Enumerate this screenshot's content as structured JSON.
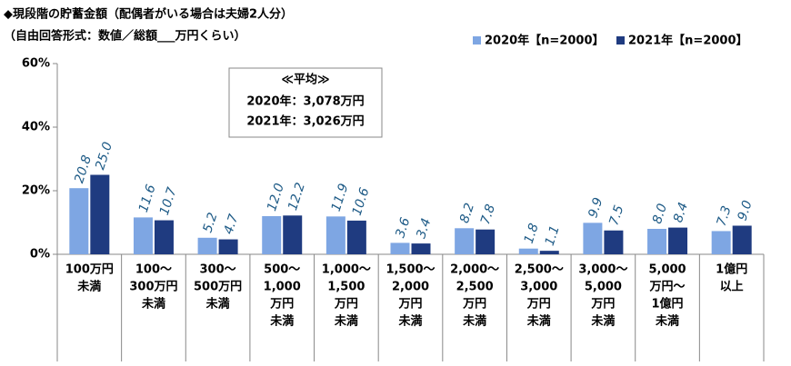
{
  "chart_data": {
    "type": "bar",
    "title": "◆現段階の貯蓄金額（配偶者がいる場合は夫婦2人分）",
    "subtitle": "（自由回答形式：数値／総額___万円くらい）",
    "categories": [
      [
        "100万円",
        "未満"
      ],
      [
        "100～",
        "300万円",
        "未満"
      ],
      [
        "300～",
        "500万円",
        "未満"
      ],
      [
        "500～",
        "1,000",
        "万円",
        "未満"
      ],
      [
        "1,000～",
        "1,500",
        "万円",
        "未満"
      ],
      [
        "1,500～",
        "2,000",
        "万円",
        "未満"
      ],
      [
        "2,000～",
        "2,500",
        "万円",
        "未満"
      ],
      [
        "2,500～",
        "3,000",
        "万円",
        "未満"
      ],
      [
        "3,000～",
        "5,000",
        "万円",
        "未満"
      ],
      [
        "5,000",
        "万円～",
        "1億円",
        "未満"
      ],
      [
        "1億円",
        "以上"
      ]
    ],
    "series": [
      {
        "name": "2020年【n=2000】",
        "color": "#7ea6e3",
        "values": [
          20.8,
          11.6,
          5.2,
          12.0,
          11.9,
          3.6,
          8.2,
          1.8,
          9.9,
          8.0,
          7.3
        ],
        "value_labels": [
          "20.8",
          "11.6",
          "5.2",
          "12.0",
          "11.9",
          "3.6",
          "8.2",
          "1.8",
          "9.9",
          "8.0",
          "7.3"
        ]
      },
      {
        "name": "2021年【n=2000】",
        "color": "#1f3b80",
        "values": [
          25.0,
          10.7,
          4.7,
          12.2,
          10.6,
          3.4,
          7.8,
          1.1,
          7.5,
          8.4,
          9.0
        ],
        "value_labels": [
          "25.0",
          "10.7",
          "4.7",
          "12.2",
          "10.6",
          "3.4",
          "7.8",
          "1.1",
          "7.5",
          "8.4",
          "9.0"
        ]
      }
    ],
    "ylim": [
      0,
      60
    ],
    "yticks": [
      {
        "value": 0,
        "label": "0%"
      },
      {
        "value": 20,
        "label": "20%"
      },
      {
        "value": 40,
        "label": "40%"
      },
      {
        "value": 60,
        "label": "60%"
      }
    ],
    "grid": false,
    "legend": "top-right",
    "annotation": {
      "title": "≪平均≫",
      "lines": [
        "2020年：3,078万円",
        "2021年：3,026万円"
      ]
    }
  }
}
